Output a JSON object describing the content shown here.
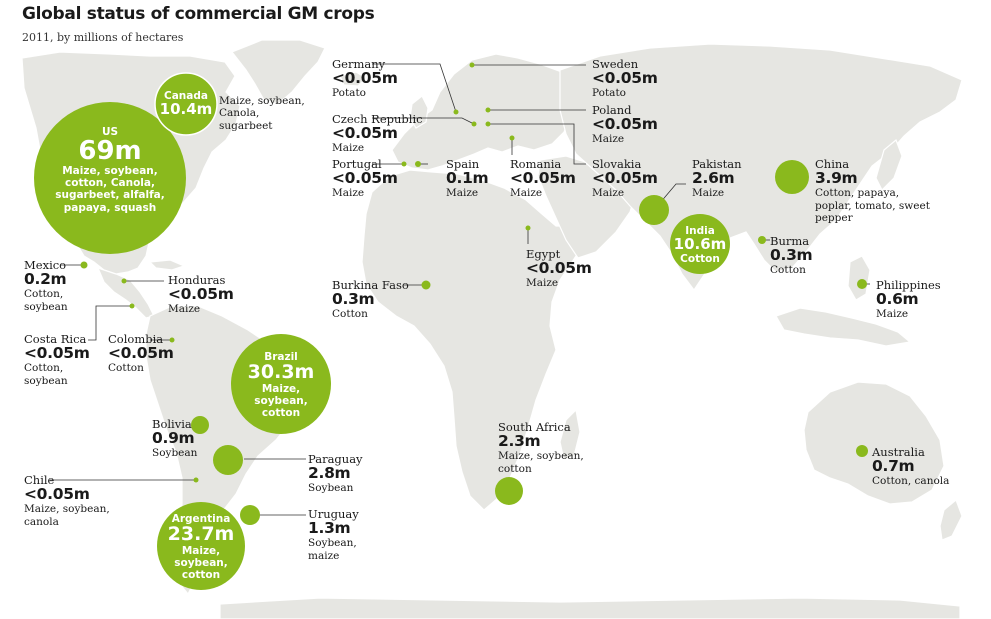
{
  "title": "Global status of commercial GM crops",
  "subtitle": "2011, by millions of hectares",
  "colors": {
    "bubble": "#8ab91d",
    "land": "#e6e6e2",
    "text": "#1a1a1a"
  },
  "countries": {
    "us": {
      "name": "US",
      "value": "69m",
      "crops": "Maize, soybean, cotton, Canola, sugarbeet, alfalfa, papaya, squash",
      "area_mha": 69
    },
    "canada": {
      "name": "Canada",
      "value": "10.4m",
      "crops": "Maize, soybean, Canola, sugarbeet",
      "area_mha": 10.4
    },
    "mexico": {
      "name": "Mexico",
      "value": "0.2m",
      "crops": "Cotton, soybean",
      "area_mha": 0.2
    },
    "honduras": {
      "name": "Honduras",
      "value": "<0.05m",
      "crops": "Maize"
    },
    "costa_rica": {
      "name": "Costa Rica",
      "value": "<0.05m",
      "crops": "Cotton, soybean"
    },
    "colombia": {
      "name": "Colombia",
      "value": "<0.05m",
      "crops": "Cotton"
    },
    "brazil": {
      "name": "Brazil",
      "value": "30.3m",
      "crops": "Maize, soybean, cotton",
      "area_mha": 30.3
    },
    "bolivia": {
      "name": "Bolivia",
      "value": "0.9m",
      "crops": "Soybean",
      "area_mha": 0.9
    },
    "paraguay": {
      "name": "Paraguay",
      "value": "2.8m",
      "crops": "Soybean",
      "area_mha": 2.8
    },
    "chile": {
      "name": "Chile",
      "value": "<0.05m",
      "crops": "Maize, soybean, canola"
    },
    "uruguay": {
      "name": "Uruguay",
      "value": "1.3m",
      "crops": "Soybean, maize",
      "area_mha": 1.3
    },
    "argentina": {
      "name": "Argentina",
      "value": "23.7m",
      "crops": "Maize, soybean, cotton",
      "area_mha": 23.7
    },
    "germany": {
      "name": "Germany",
      "value": "<0.05m",
      "crops": "Potato"
    },
    "czech_republic": {
      "name": "Czech Republic",
      "value": "<0.05m",
      "crops": "Maize"
    },
    "portugal": {
      "name": "Portugal",
      "value": "<0.05m",
      "crops": "Maize"
    },
    "spain": {
      "name": "Spain",
      "value": "0.1m",
      "crops": "Maize"
    },
    "romania": {
      "name": "Romania",
      "value": "<0.05m",
      "crops": "Maize"
    },
    "sweden": {
      "name": "Sweden",
      "value": "<0.05m",
      "crops": "Potato"
    },
    "poland": {
      "name": "Poland",
      "value": "<0.05m",
      "crops": "Maize"
    },
    "slovakia": {
      "name": "Slovakia",
      "value": "<0.05m",
      "crops": "Maize"
    },
    "burkina_faso": {
      "name": "Burkina Faso",
      "value": "0.3m",
      "crops": "Cotton"
    },
    "egypt": {
      "name": "Egypt",
      "value": "<0.05m",
      "crops": "Maize"
    },
    "south_africa": {
      "name": "South Africa",
      "value": "2.3m",
      "crops": "Maize, soybean, cotton",
      "area_mha": 2.3
    },
    "pakistan": {
      "name": "Pakistan",
      "value": "2.6m",
      "crops": "Maize",
      "area_mha": 2.6
    },
    "india": {
      "name": "India",
      "value": "10.6m",
      "crops": "Cotton",
      "area_mha": 10.6
    },
    "china": {
      "name": "China",
      "value": "3.9m",
      "crops": "Cotton, papaya, poplar, tomato, sweet pepper",
      "area_mha": 3.9
    },
    "burma": {
      "name": "Burma",
      "value": "0.3m",
      "crops": "Cotton"
    },
    "philippines": {
      "name": "Philippines",
      "value": "0.6m",
      "crops": "Maize"
    },
    "australia": {
      "name": "Australia",
      "value": "0.7m",
      "crops": "Cotton, canola"
    }
  }
}
